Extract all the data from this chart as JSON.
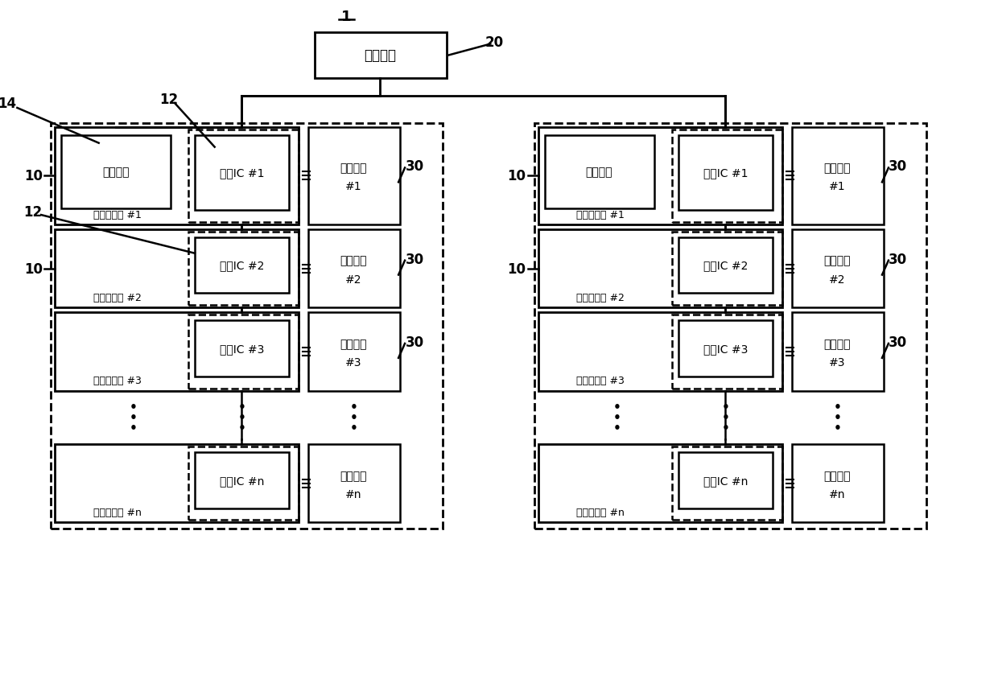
{
  "bg_color": "#ffffff",
  "main_ctrl": "主控制部",
  "micro": "微控制器",
  "slave": "从属控制部",
  "battery": "电池模块",
  "sense1": "感应IC #1",
  "sense2": "感应IC #2",
  "sense3": "感应IC #3",
  "sensen": "感应IC #n",
  "b1": "#1",
  "b2": "#2",
  "b3": "#3",
  "bn": "#n",
  "s1": "从属控制部 #1",
  "s2": "从属控制部 #2",
  "s3": "从属控制部 #3",
  "sn": "从属控制部 #n"
}
